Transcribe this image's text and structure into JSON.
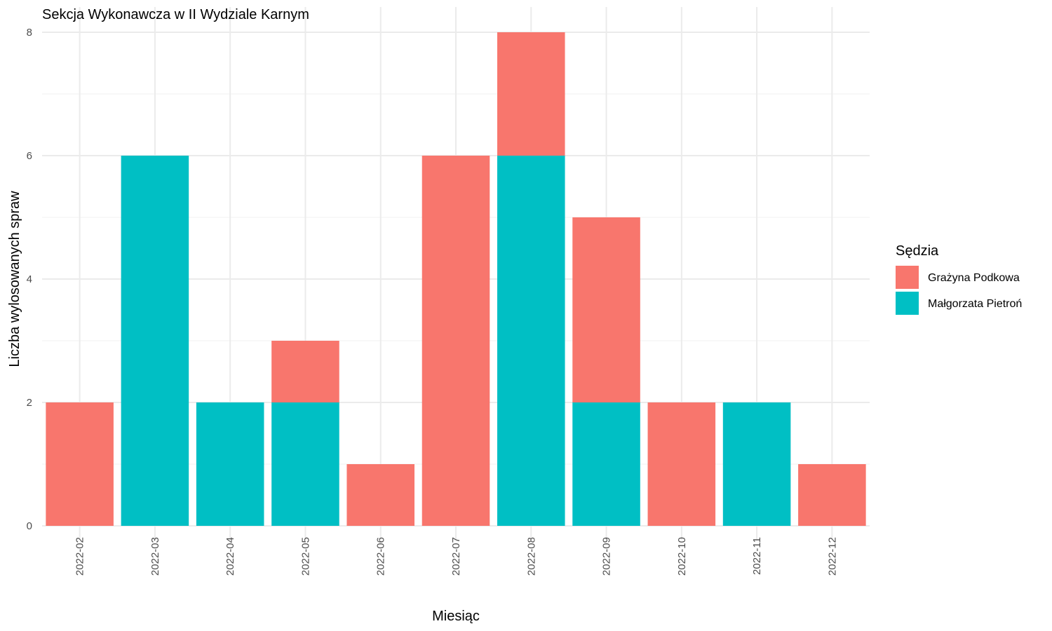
{
  "chart_data": {
    "type": "bar",
    "stacked": true,
    "title": "Sekcja Wykonawcza w II Wydziale Karnym",
    "xlabel": "Miesiąc",
    "ylabel": "Liczba wylosowanych spraw",
    "ylim": [
      0,
      8
    ],
    "yticks": [
      0,
      2,
      4,
      6,
      8
    ],
    "grid": true,
    "legend_position": "right",
    "legend_title": "Sędzia",
    "categories": [
      "2022-02",
      "2022-03",
      "2022-04",
      "2022-05",
      "2022-06",
      "2022-07",
      "2022-08",
      "2022-09",
      "2022-10",
      "2022-11",
      "2022-12"
    ],
    "series": [
      {
        "name": "Małgorzata Pietroń",
        "color": "#00BFC4",
        "values": [
          0,
          6,
          2,
          2,
          0,
          0,
          6,
          2,
          0,
          2,
          0
        ]
      },
      {
        "name": "Grażyna Podkowa",
        "color": "#F8766D",
        "values": [
          2,
          0,
          0,
          1,
          1,
          6,
          2,
          3,
          2,
          0,
          1
        ]
      }
    ],
    "legend_order": [
      "Grażyna Podkowa",
      "Małgorzata Pietroń"
    ]
  }
}
